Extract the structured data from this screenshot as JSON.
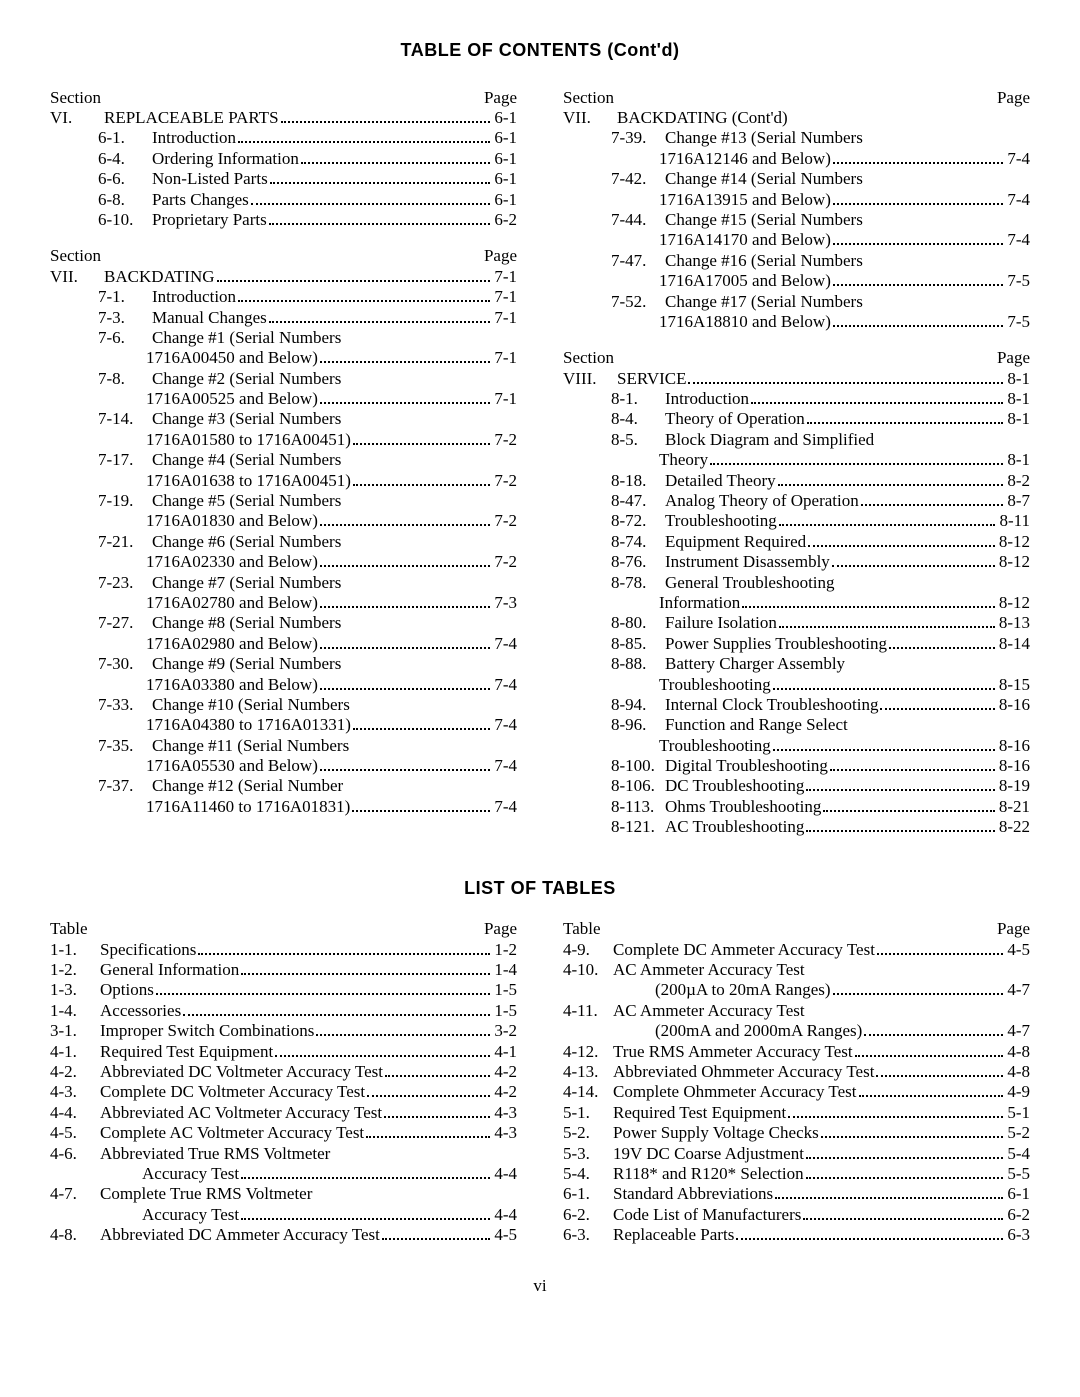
{
  "headings": {
    "toc": "TABLE OF CONTENTS (Cont'd)",
    "lot": "LIST OF TABLES",
    "page_label": "Page",
    "section_label": "Section",
    "table_label": "Table",
    "page_number": "vi"
  },
  "toc_left": [
    {
      "type": "header"
    },
    {
      "type": "section",
      "num": "VI.",
      "title": "REPLACEABLE PARTS",
      "page": "6-1",
      "indent": 0
    },
    {
      "type": "entry",
      "num": "6-1.",
      "title": "Introduction",
      "page": "6-1",
      "indent": 1
    },
    {
      "type": "entry",
      "num": "6-4.",
      "title": "Ordering Information",
      "page": "6-1",
      "indent": 1
    },
    {
      "type": "entry",
      "num": "6-6.",
      "title": "Non-Listed Parts",
      "page": "6-1",
      "indent": 1
    },
    {
      "type": "entry",
      "num": "6-8.",
      "title": "Parts Changes",
      "page": "6-1",
      "indent": 1
    },
    {
      "type": "entry",
      "num": "6-10.",
      "title": "Proprietary Parts",
      "page": "6-2",
      "indent": 1
    },
    {
      "type": "gap"
    },
    {
      "type": "header"
    },
    {
      "type": "section",
      "num": "VII.",
      "title": "BACKDATING",
      "page": "7-1",
      "indent": 0
    },
    {
      "type": "entry",
      "num": "7-1.",
      "title": "Introduction",
      "page": "7-1",
      "indent": 1
    },
    {
      "type": "entry",
      "num": "7-3.",
      "title": "Manual Changes",
      "page": "7-1",
      "indent": 1
    },
    {
      "type": "entry2",
      "num": "7-6.",
      "title": "Change #1 (Serial Numbers",
      "title2": "1716A00450 and Below)",
      "page": "7-1",
      "indent": 1
    },
    {
      "type": "entry2",
      "num": "7-8.",
      "title": "Change #2 (Serial Numbers",
      "title2": "1716A00525 and Below)",
      "page": "7-1",
      "indent": 1
    },
    {
      "type": "entry2",
      "num": "7-14.",
      "title": "Change #3 (Serial Numbers",
      "title2": "1716A01580 to 1716A00451)",
      "page": "7-2",
      "indent": 1
    },
    {
      "type": "entry2",
      "num": "7-17.",
      "title": "Change #4 (Serial Numbers",
      "title2": "1716A01638 to 1716A00451)",
      "page": "7-2",
      "indent": 1
    },
    {
      "type": "entry2",
      "num": "7-19.",
      "title": "Change #5 (Serial Numbers",
      "title2": "1716A01830 and Below)",
      "page": "7-2",
      "indent": 1
    },
    {
      "type": "entry2",
      "num": "7-21.",
      "title": "Change #6 (Serial Numbers",
      "title2": "1716A02330 and Below)",
      "page": "7-2",
      "indent": 1
    },
    {
      "type": "entry2",
      "num": "7-23.",
      "title": "Change #7 (Serial Numbers",
      "title2": "1716A02780 and Below)",
      "page": "7-3",
      "indent": 1
    },
    {
      "type": "entry2",
      "num": "7-27.",
      "title": "Change #8 (Serial Numbers",
      "title2": "1716A02980 and Below)",
      "page": "7-4",
      "indent": 1
    },
    {
      "type": "entry2",
      "num": "7-30.",
      "title": "Change #9 (Serial Numbers",
      "title2": "1716A03380 and Below)",
      "page": "7-4",
      "indent": 1
    },
    {
      "type": "entry2",
      "num": "7-33.",
      "title": "Change #10 (Serial Numbers",
      "title2": "1716A04380 to 1716A01331)",
      "page": "7-4",
      "indent": 1
    },
    {
      "type": "entry2",
      "num": "7-35.",
      "title": "Change #11 (Serial Numbers",
      "title2": "1716A05530 and Below)",
      "page": "7-4",
      "indent": 1
    },
    {
      "type": "entry2",
      "num": "7-37.",
      "title": "Change #12 (Serial Number",
      "title2": "1716A11460 to 1716A01831)",
      "page": "7-4",
      "indent": 1
    }
  ],
  "toc_right": [
    {
      "type": "header"
    },
    {
      "type": "plain",
      "num": "VII.",
      "title": "BACKDATING (Cont'd)",
      "indent": 0
    },
    {
      "type": "entry2",
      "num": "7-39.",
      "title": "Change #13 (Serial Numbers",
      "title2": "1716A12146 and Below)",
      "page": "7-4",
      "indent": 1
    },
    {
      "type": "entry2",
      "num": "7-42.",
      "title": "Change #14 (Serial Numbers",
      "title2": "1716A13915 and Below)",
      "page": "7-4",
      "indent": 1
    },
    {
      "type": "entry2",
      "num": "7-44.",
      "title": "Change #15 (Serial Numbers",
      "title2": "1716A14170 and Below)",
      "page": "7-4",
      "indent": 1
    },
    {
      "type": "entry2",
      "num": "7-47.",
      "title": "Change #16 (Serial Numbers",
      "title2": "1716A17005 and Below)",
      "page": "7-5",
      "indent": 1
    },
    {
      "type": "entry2",
      "num": "7-52.",
      "title": "Change #17 (Serial Numbers",
      "title2": "1716A18810 and Below)",
      "page": "7-5",
      "indent": 1
    },
    {
      "type": "gap"
    },
    {
      "type": "header"
    },
    {
      "type": "section",
      "num": "VIII.",
      "title": "SERVICE",
      "page": "8-1",
      "indent": 0
    },
    {
      "type": "entry",
      "num": "8-1.",
      "title": "Introduction",
      "page": "8-1",
      "indent": 1
    },
    {
      "type": "entry",
      "num": "8-4.",
      "title": "Theory of Operation",
      "page": "8-1",
      "indent": 1
    },
    {
      "type": "entry2",
      "num": "8-5.",
      "title": "Block Diagram and Simplified",
      "title2": "Theory",
      "page": "8-1",
      "indent": 1
    },
    {
      "type": "entry",
      "num": "8-18.",
      "title": "Detailed Theory",
      "page": "8-2",
      "indent": 1
    },
    {
      "type": "entry",
      "num": "8-47.",
      "title": "Analog Theory of Operation",
      "page": "8-7",
      "indent": 1
    },
    {
      "type": "entry",
      "num": "8-72.",
      "title": "Troubleshooting",
      "page": "8-11",
      "indent": 1
    },
    {
      "type": "entry",
      "num": "8-74.",
      "title": "Equipment Required",
      "page": "8-12",
      "indent": 1
    },
    {
      "type": "entry",
      "num": "8-76.",
      "title": "Instrument Disassembly",
      "page": "8-12",
      "indent": 1
    },
    {
      "type": "entry2",
      "num": "8-78.",
      "title": "General Troubleshooting",
      "title2": "Information",
      "page": "8-12",
      "indent": 1
    },
    {
      "type": "entry",
      "num": "8-80.",
      "title": "Failure Isolation",
      "page": "8-13",
      "indent": 1
    },
    {
      "type": "entry",
      "num": "8-85.",
      "title": "Power Supplies Troubleshooting",
      "page": "8-14",
      "indent": 1
    },
    {
      "type": "entry2",
      "num": "8-88.",
      "title": "Battery Charger Assembly",
      "title2": "Troubleshooting",
      "page": "8-15",
      "indent": 1
    },
    {
      "type": "entry",
      "num": "8-94.",
      "title": "Internal Clock Troubleshooting",
      "page": "8-16",
      "indent": 1
    },
    {
      "type": "entry2",
      "num": "8-96.",
      "title": "Function and Range Select",
      "title2": "Troubleshooting",
      "page": "8-16",
      "indent": 1
    },
    {
      "type": "entry",
      "num": "8-100.",
      "title": "Digital Troubleshooting",
      "page": "8-16",
      "indent": 1
    },
    {
      "type": "entry",
      "num": "8-106.",
      "title": "DC Troubleshooting",
      "page": "8-19",
      "indent": 1
    },
    {
      "type": "entry",
      "num": "8-113.",
      "title": "Ohms Troubleshooting",
      "page": "8-21",
      "indent": 1
    },
    {
      "type": "entry",
      "num": "8-121.",
      "title": "AC Troubleshooting",
      "page": "8-22",
      "indent": 1
    }
  ],
  "lot_left": [
    {
      "type": "header"
    },
    {
      "type": "entry",
      "num": "1-1.",
      "title": "Specifications",
      "page": "1-2"
    },
    {
      "type": "entry",
      "num": "1-2.",
      "title": "General Information",
      "page": "1-4"
    },
    {
      "type": "entry",
      "num": "1-3.",
      "title": "Options",
      "page": "1-5"
    },
    {
      "type": "entry",
      "num": "1-4.",
      "title": "Accessories",
      "page": "1-5"
    },
    {
      "type": "entry",
      "num": "3-1.",
      "title": "Improper Switch Combinations",
      "page": "3-2"
    },
    {
      "type": "entry",
      "num": "4-1.",
      "title": "Required Test Equipment",
      "page": "4-1"
    },
    {
      "type": "entry",
      "num": "4-2.",
      "title": "Abbreviated DC Voltmeter Accuracy Test",
      "page": "4-2"
    },
    {
      "type": "entry",
      "num": "4-3.",
      "title": "Complete DC Voltmeter Accuracy Test",
      "page": "4-2"
    },
    {
      "type": "entry",
      "num": "4-4.",
      "title": "Abbreviated AC Voltmeter Accuracy Test",
      "page": "4-3"
    },
    {
      "type": "entry",
      "num": "4-5.",
      "title": "Complete AC Voltmeter Accuracy Test",
      "page": "4-3"
    },
    {
      "type": "entry2",
      "num": "4-6.",
      "title": "Abbreviated True RMS Voltmeter",
      "title2": "Accuracy Test",
      "page": "4-4"
    },
    {
      "type": "entry2",
      "num": "4-7.",
      "title": "Complete True RMS Voltmeter",
      "title2": "Accuracy Test",
      "page": "4-4"
    },
    {
      "type": "entry",
      "num": "4-8.",
      "title": "Abbreviated DC Ammeter Accuracy Test",
      "page": "4-5"
    }
  ],
  "lot_right": [
    {
      "type": "header"
    },
    {
      "type": "entry",
      "num": "4-9.",
      "title": "Complete DC Ammeter Accuracy Test",
      "page": "4-5"
    },
    {
      "type": "entry2",
      "num": "4-10.",
      "title": "AC Ammeter Accuracy Test",
      "title2": "(200µA to 20mA Ranges)",
      "page": "4-7"
    },
    {
      "type": "entry2",
      "num": "4-11.",
      "title": "AC Ammeter Accuracy Test",
      "title2": "(200mA and 2000mA Ranges)",
      "page": "4-7"
    },
    {
      "type": "entry",
      "num": "4-12.",
      "title": "True RMS Ammeter Accuracy Test",
      "page": "4-8"
    },
    {
      "type": "entry",
      "num": "4-13.",
      "title": "Abbreviated Ohmmeter Accuracy Test",
      "page": "4-8"
    },
    {
      "type": "entry",
      "num": "4-14.",
      "title": "Complete Ohmmeter Accuracy Test",
      "page": "4-9"
    },
    {
      "type": "entry",
      "num": "5-1.",
      "title": "Required Test Equipment",
      "page": "5-1"
    },
    {
      "type": "entry",
      "num": "5-2.",
      "title": "Power Supply Voltage Checks",
      "page": "5-2"
    },
    {
      "type": "entry",
      "num": "5-3.",
      "title": "19V DC Coarse Adjustment",
      "page": "5-4"
    },
    {
      "type": "entry",
      "num": "5-4.",
      "title": "R118* and R120* Selection",
      "page": "5-5"
    },
    {
      "type": "entry",
      "num": "6-1.",
      "title": "Standard Abbreviations",
      "page": "6-1"
    },
    {
      "type": "entry",
      "num": "6-2.",
      "title": "Code List of Manufacturers",
      "page": "6-2"
    },
    {
      "type": "entry",
      "num": "6-3.",
      "title": "Replaceable Parts",
      "page": "6-3"
    }
  ]
}
